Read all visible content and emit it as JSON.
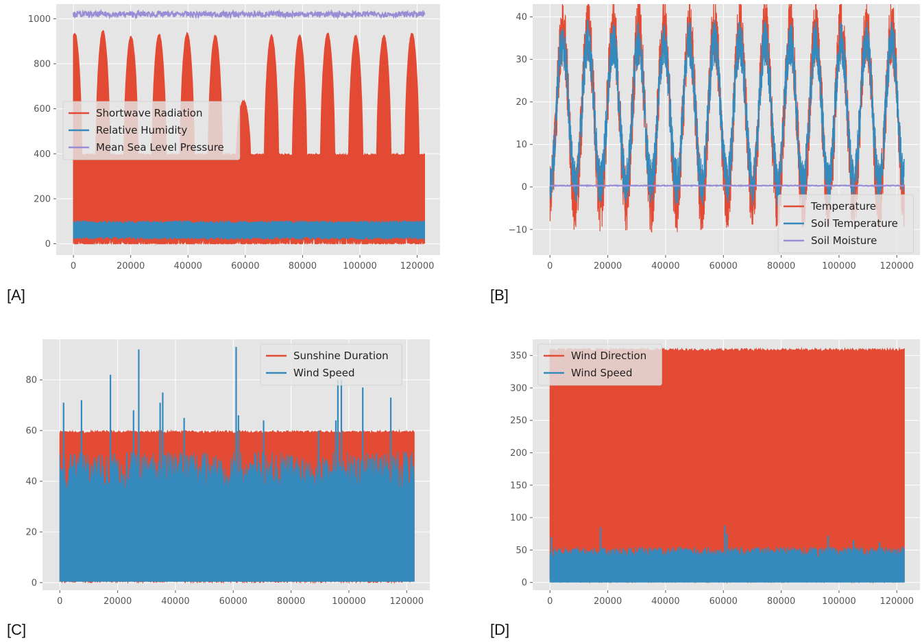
{
  "panels": [
    {
      "label": "[A]"
    },
    {
      "label": "[B]"
    },
    {
      "label": "[C]"
    },
    {
      "label": "[D]"
    }
  ],
  "style": {
    "plot_background": "#e5e5e5",
    "grid_color": "#ffffff",
    "red": "#e24a33",
    "blue": "#348abd",
    "purple": "#988ed5",
    "legend_background": "#e5e5e5"
  },
  "chart_data": [
    {
      "id": "A",
      "type": "line",
      "x_range": [
        0,
        122600
      ],
      "xlim": [
        -6000,
        128000
      ],
      "xticks": [
        0,
        20000,
        40000,
        60000,
        80000,
        100000,
        120000
      ],
      "xtick_labels": [
        "0",
        "20000",
        "40000",
        "60000",
        "80000",
        "100000",
        "120000"
      ],
      "ylim": [
        -50,
        1065
      ],
      "yticks": [
        0,
        200,
        400,
        600,
        800,
        1000
      ],
      "ytick_labels": [
        "0",
        "200",
        "400",
        "600",
        "800",
        "1000"
      ],
      "grid": true,
      "legend_position": "center-left",
      "series": [
        {
          "name": "Shortwave Radiation",
          "color": "#e24a33",
          "render": "band",
          "low": 0,
          "high_floor": 400,
          "cycles": 12.5,
          "phase": -0.05,
          "peaks": [
            940,
            950,
            925,
            935,
            940,
            930,
            640,
            930,
            930,
            940,
            930,
            930,
            940
          ]
        },
        {
          "name": "Relative Humidity",
          "color": "#348abd",
          "render": "band",
          "low": 20,
          "high": 102
        },
        {
          "name": "Mean Sea Level Pressure",
          "color": "#988ed5",
          "render": "line",
          "mean": 1020,
          "noise": 12
        }
      ]
    },
    {
      "id": "B",
      "type": "line",
      "x_range": [
        0,
        122600
      ],
      "xlim": [
        -6000,
        128000
      ],
      "xticks": [
        0,
        20000,
        40000,
        60000,
        80000,
        100000,
        120000
      ],
      "xtick_labels": [
        "0",
        "20000",
        "40000",
        "60000",
        "80000",
        "100000",
        "120000"
      ],
      "ylim": [
        -16,
        43
      ],
      "yticks": [
        -10,
        0,
        10,
        20,
        30,
        40
      ],
      "ytick_labels": [
        "−10",
        "0",
        "10",
        "20",
        "30",
        "40"
      ],
      "grid": true,
      "legend_position": "lower-right",
      "series": [
        {
          "name": "Temperature",
          "color": "#e24a33",
          "render": "seasonal",
          "min": -3,
          "max": 37,
          "cycles": 14,
          "noise": 5
        },
        {
          "name": "Soil Temperature",
          "color": "#348abd",
          "render": "seasonal",
          "min": 1,
          "max": 34,
          "cycles": 14,
          "noise": 3.5
        },
        {
          "name": "Soil Moisture",
          "color": "#988ed5",
          "render": "line",
          "mean": 0.3,
          "noise": 0.1
        }
      ]
    },
    {
      "id": "C",
      "type": "line",
      "x_range": [
        0,
        122600
      ],
      "xlim": [
        -6000,
        128000
      ],
      "xticks": [
        0,
        20000,
        40000,
        60000,
        80000,
        100000,
        120000
      ],
      "xtick_labels": [
        "0",
        "20000",
        "40000",
        "60000",
        "80000",
        "100000",
        "120000"
      ],
      "ylim": [
        -3,
        96
      ],
      "yticks": [
        0,
        20,
        40,
        60,
        80
      ],
      "ytick_labels": [
        "0",
        "20",
        "40",
        "60",
        "80"
      ],
      "grid": true,
      "legend_position": "upper-right",
      "series": [
        {
          "name": "Sunshine Duration",
          "color": "#e24a33",
          "render": "band",
          "low": 0,
          "high": 60
        },
        {
          "name": "Wind Speed",
          "color": "#348abd",
          "render": "spiky",
          "low": 0.5,
          "base_top": 45,
          "spikes": [
            [
              1300,
              71
            ],
            [
              7500,
              72
            ],
            [
              17500,
              82
            ],
            [
              25500,
              68
            ],
            [
              27300,
              92
            ],
            [
              34700,
              71
            ],
            [
              35600,
              75
            ],
            [
              43000,
              65
            ],
            [
              61000,
              93
            ],
            [
              61800,
              66
            ],
            [
              70500,
              64
            ],
            [
              89500,
              60
            ],
            [
              95500,
              64
            ],
            [
              96200,
              80
            ],
            [
              97400,
              80
            ],
            [
              104800,
              77
            ],
            [
              114500,
              73
            ]
          ]
        }
      ]
    },
    {
      "id": "D",
      "type": "line",
      "x_range": [
        0,
        122600
      ],
      "xlim": [
        -6000,
        128000
      ],
      "xticks": [
        0,
        20000,
        40000,
        60000,
        80000,
        100000,
        120000
      ],
      "xtick_labels": [
        "0",
        "20000",
        "40000",
        "60000",
        "80000",
        "100000",
        "120000"
      ],
      "ylim": [
        -12,
        375
      ],
      "yticks": [
        0,
        50,
        100,
        150,
        200,
        250,
        300,
        350
      ],
      "ytick_labels": [
        "0",
        "50",
        "100",
        "150",
        "200",
        "250",
        "300",
        "350"
      ],
      "grid": true,
      "legend_position": "upper-left",
      "series": [
        {
          "name": "Wind Direction",
          "color": "#e24a33",
          "render": "band",
          "low": 0,
          "high": 361
        },
        {
          "name": "Wind Speed",
          "color": "#348abd",
          "render": "spiky",
          "low": 0.5,
          "base_top": 48,
          "spikes": [
            [
              500,
              70
            ],
            [
              17500,
              85
            ],
            [
              60500,
              88
            ],
            [
              61200,
              75
            ],
            [
              96200,
              72
            ],
            [
              105000,
              65
            ],
            [
              114000,
              62
            ]
          ]
        }
      ]
    }
  ]
}
